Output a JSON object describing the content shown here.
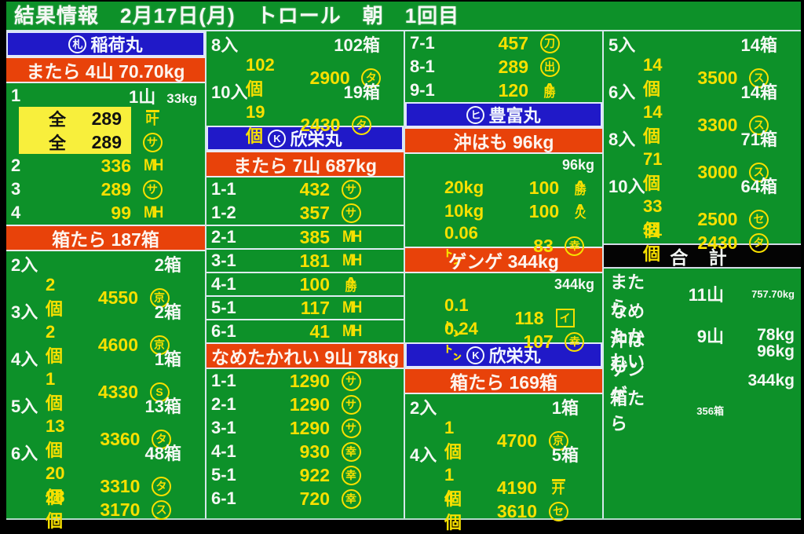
{
  "title": "結果情報　2月17日(月)　トロール　朝　1回目",
  "colors": {
    "background_green": "#0d9129",
    "boat_header_blue": "#2019c8",
    "species_bar_red": "#e8420a",
    "value_yellow": "#f8e000",
    "text_white": "#f4f8f4",
    "highlight_yellow": "#f8ef3c",
    "total_header_black": "#040404"
  },
  "marks": {
    "satsu": {
      "shape": "circle",
      "glyph": "札"
    },
    "K": {
      "shape": "circle",
      "glyph": "K"
    },
    "hi": {
      "shape": "circle",
      "glyph": "ヒ"
    },
    "sa": {
      "shape": "circle",
      "glyph": "サ"
    },
    "ta": {
      "shape": "circle",
      "glyph": "タ"
    },
    "su": {
      "shape": "circle",
      "glyph": "ス"
    },
    "se": {
      "shape": "circle",
      "glyph": "セ"
    },
    "S": {
      "shape": "circle",
      "glyph": "S"
    },
    "kyo": {
      "shape": "circle",
      "glyph": "京"
    },
    "ko": {
      "shape": "circle",
      "glyph": "幸"
    },
    "to": {
      "shape": "circle",
      "glyph": "刀"
    },
    "de": {
      "shape": "circle",
      "glyph": "出"
    },
    "katsu": {
      "shape": "yama",
      "glyph": "勝"
    },
    "hiya": {
      "shape": "yama",
      "glyph": "火"
    },
    "i": {
      "shape": "box",
      "glyph": "イ"
    },
    "kai": {
      "shape": "overline",
      "glyph": "开"
    },
    "kano": {
      "shape": "overline",
      "glyph": "叶"
    },
    "MH": {
      "shape": "text",
      "glyph": "MH"
    }
  },
  "columns": [
    [
      {
        "type": "boat",
        "mark": "satsu",
        "name": "稲荷丸"
      },
      {
        "type": "species",
        "label": "またら 4山 70.70kg"
      },
      {
        "type": "row",
        "kind": "lr",
        "label": "1",
        "right": [
          {
            "text": "1山"
          },
          {
            "text": "33kg",
            "small": true
          }
        ]
      },
      {
        "type": "row",
        "kind": "hl",
        "label": "全",
        "price": "289",
        "mark": "kano"
      },
      {
        "type": "row",
        "kind": "hl",
        "label": "全",
        "price": "289",
        "mark": "sa"
      },
      {
        "type": "row",
        "kind": "lpm",
        "label": "2",
        "price": "336",
        "mark": "MH"
      },
      {
        "type": "row",
        "kind": "lpm",
        "label": "3",
        "price": "289",
        "mark": "sa"
      },
      {
        "type": "row",
        "kind": "lpm",
        "label": "4",
        "price": "99",
        "mark": "MH"
      },
      {
        "type": "species",
        "label": "箱たら 187箱"
      },
      {
        "type": "row",
        "kind": "in",
        "label": "2入",
        "right": "2箱"
      },
      {
        "type": "row",
        "kind": "qpm",
        "qty": "2個",
        "price": "4550",
        "mark": "kyo"
      },
      {
        "type": "row",
        "kind": "in",
        "label": "3入",
        "right": "2箱"
      },
      {
        "type": "row",
        "kind": "qpm",
        "qty": "2個",
        "price": "4600",
        "mark": "kyo"
      },
      {
        "type": "row",
        "kind": "in",
        "label": "4入",
        "right": "1箱"
      },
      {
        "type": "row",
        "kind": "qpm",
        "qty": "1個",
        "price": "4330",
        "mark": "S"
      },
      {
        "type": "row",
        "kind": "in",
        "label": "5入",
        "right": "13箱"
      },
      {
        "type": "row",
        "kind": "qpm",
        "qty": "13個",
        "price": "3360",
        "mark": "ta"
      },
      {
        "type": "row",
        "kind": "in",
        "label": "6入",
        "right": "48箱"
      },
      {
        "type": "row",
        "kind": "qpm",
        "qty": "20個",
        "price": "3310",
        "mark": "ta"
      },
      {
        "type": "row",
        "kind": "qpm",
        "qty": "28個",
        "price": "3170",
        "mark": "su"
      }
    ],
    [
      {
        "type": "row",
        "kind": "in",
        "label": "8入",
        "right": "102箱",
        "rightSmall": true
      },
      {
        "type": "row",
        "kind": "qpm",
        "qty": "102個",
        "price": "2900",
        "mark": "ta"
      },
      {
        "type": "row",
        "kind": "in",
        "label": "10入",
        "right": "19箱"
      },
      {
        "type": "row",
        "kind": "qpm",
        "qty": "19個",
        "price": "2430",
        "mark": "ta"
      },
      {
        "type": "boat",
        "mark": "K",
        "name": "欣栄丸"
      },
      {
        "type": "species",
        "label": "またら 7山 687kg"
      },
      {
        "type": "row",
        "kind": "lpm",
        "label": "1-1",
        "price": "432",
        "mark": "sa"
      },
      {
        "type": "row",
        "kind": "lpm",
        "label": "1-2",
        "price": "357",
        "mark": "sa"
      },
      {
        "type": "row",
        "kind": "lpm",
        "label": "2-1",
        "price": "385",
        "mark": "MH",
        "sep": true
      },
      {
        "type": "row",
        "kind": "lpm",
        "label": "3-1",
        "price": "181",
        "mark": "MH",
        "sep": true
      },
      {
        "type": "row",
        "kind": "lpm",
        "label": "4-1",
        "price": "100",
        "mark": "katsu",
        "sep": true
      },
      {
        "type": "row",
        "kind": "lpm",
        "label": "5-1",
        "price": "117",
        "mark": "MH",
        "sep": true
      },
      {
        "type": "row",
        "kind": "lpm",
        "label": "6-1",
        "price": "41",
        "mark": "MH",
        "sep": true
      },
      {
        "type": "species",
        "label": "なめたかれい 9山 78kg"
      },
      {
        "type": "row",
        "kind": "lpm",
        "label": "1-1",
        "price": "1290",
        "mark": "sa"
      },
      {
        "type": "row",
        "kind": "lpm",
        "label": "2-1",
        "price": "1290",
        "mark": "sa"
      },
      {
        "type": "row",
        "kind": "lpm",
        "label": "3-1",
        "price": "1290",
        "mark": "sa"
      },
      {
        "type": "row",
        "kind": "lpm",
        "label": "4-1",
        "price": "930",
        "mark": "ko"
      },
      {
        "type": "row",
        "kind": "lpm",
        "label": "5-1",
        "price": "922",
        "mark": "ko"
      },
      {
        "type": "row",
        "kind": "lpm",
        "label": "6-1",
        "price": "720",
        "mark": "ko"
      }
    ],
    [
      {
        "type": "row",
        "kind": "lpm",
        "label": "7-1",
        "price": "457",
        "mark": "to"
      },
      {
        "type": "row",
        "kind": "lpm",
        "label": "8-1",
        "price": "289",
        "mark": "de"
      },
      {
        "type": "row",
        "kind": "lpm",
        "label": "9-1",
        "price": "120",
        "mark": "katsu"
      },
      {
        "type": "boat",
        "mark": "hi",
        "name": "豊富丸"
      },
      {
        "type": "species",
        "label": "沖はも 96kg"
      },
      {
        "type": "smallr",
        "text": "96kg"
      },
      {
        "type": "row",
        "kind": "qpm",
        "qty": "20kg",
        "price": "100",
        "mark": "katsu"
      },
      {
        "type": "row",
        "kind": "qpm",
        "qty": "10kg",
        "price": "100",
        "mark": "hiya"
      },
      {
        "type": "row",
        "kind": "qpm",
        "qty": "0.06㌧",
        "price": "83",
        "mark": "ko"
      },
      {
        "type": "species",
        "label": "ゲンゲ 344kg"
      },
      {
        "type": "smallr",
        "text": "344kg"
      },
      {
        "type": "row",
        "kind": "qpm",
        "qty": "0.1㌧",
        "price": "118",
        "mark": "i"
      },
      {
        "type": "row",
        "kind": "qpm",
        "qty": "0.24㌧",
        "price": "107",
        "mark": "ko"
      },
      {
        "type": "boat",
        "mark": "K",
        "name": "欣栄丸"
      },
      {
        "type": "species",
        "label": "箱たら 169箱"
      },
      {
        "type": "row",
        "kind": "in",
        "label": "2入",
        "right": "1箱"
      },
      {
        "type": "row",
        "kind": "qpm",
        "qty": "1個",
        "price": "4700",
        "mark": "kyo"
      },
      {
        "type": "row",
        "kind": "in",
        "label": "4入",
        "right": "5箱"
      },
      {
        "type": "row",
        "kind": "qpm",
        "qty": "1個",
        "price": "4190",
        "mark": "kai"
      },
      {
        "type": "row",
        "kind": "qpm",
        "qty": "4個",
        "price": "3610",
        "mark": "se"
      }
    ],
    [
      {
        "type": "row",
        "kind": "in",
        "label": "5入",
        "right": "14箱"
      },
      {
        "type": "row",
        "kind": "qpm",
        "qty": "14個",
        "price": "3500",
        "mark": "su"
      },
      {
        "type": "row",
        "kind": "in",
        "label": "6入",
        "right": "14箱"
      },
      {
        "type": "row",
        "kind": "qpm",
        "qty": "14個",
        "price": "3300",
        "mark": "su"
      },
      {
        "type": "row",
        "kind": "in",
        "label": "8入",
        "right": "71箱"
      },
      {
        "type": "row",
        "kind": "qpm",
        "qty": "71個",
        "price": "3000",
        "mark": "su"
      },
      {
        "type": "row",
        "kind": "in",
        "label": "10入",
        "right": "64箱"
      },
      {
        "type": "row",
        "kind": "qpm",
        "qty": "33個",
        "price": "2500",
        "mark": "se"
      },
      {
        "type": "row",
        "kind": "qpm",
        "qty": "31個",
        "price": "2430",
        "mark": "ta"
      },
      {
        "type": "black",
        "label": "合 計"
      },
      {
        "type": "total",
        "name": "またら",
        "mid": "11山",
        "right": "757.70kg",
        "rightSmall": true
      },
      {
        "type": "total",
        "name": "なめたかれい",
        "mid": "9山",
        "right": "78kg"
      },
      {
        "type": "total",
        "name": "沖はも",
        "mid": "",
        "right": "96kg"
      },
      {
        "type": "total",
        "name": "ゲンゲ",
        "mid": "",
        "right": "344kg"
      },
      {
        "type": "total",
        "name": "箱たら",
        "mid": "356箱",
        "midSmall": true,
        "right": ""
      }
    ]
  ]
}
